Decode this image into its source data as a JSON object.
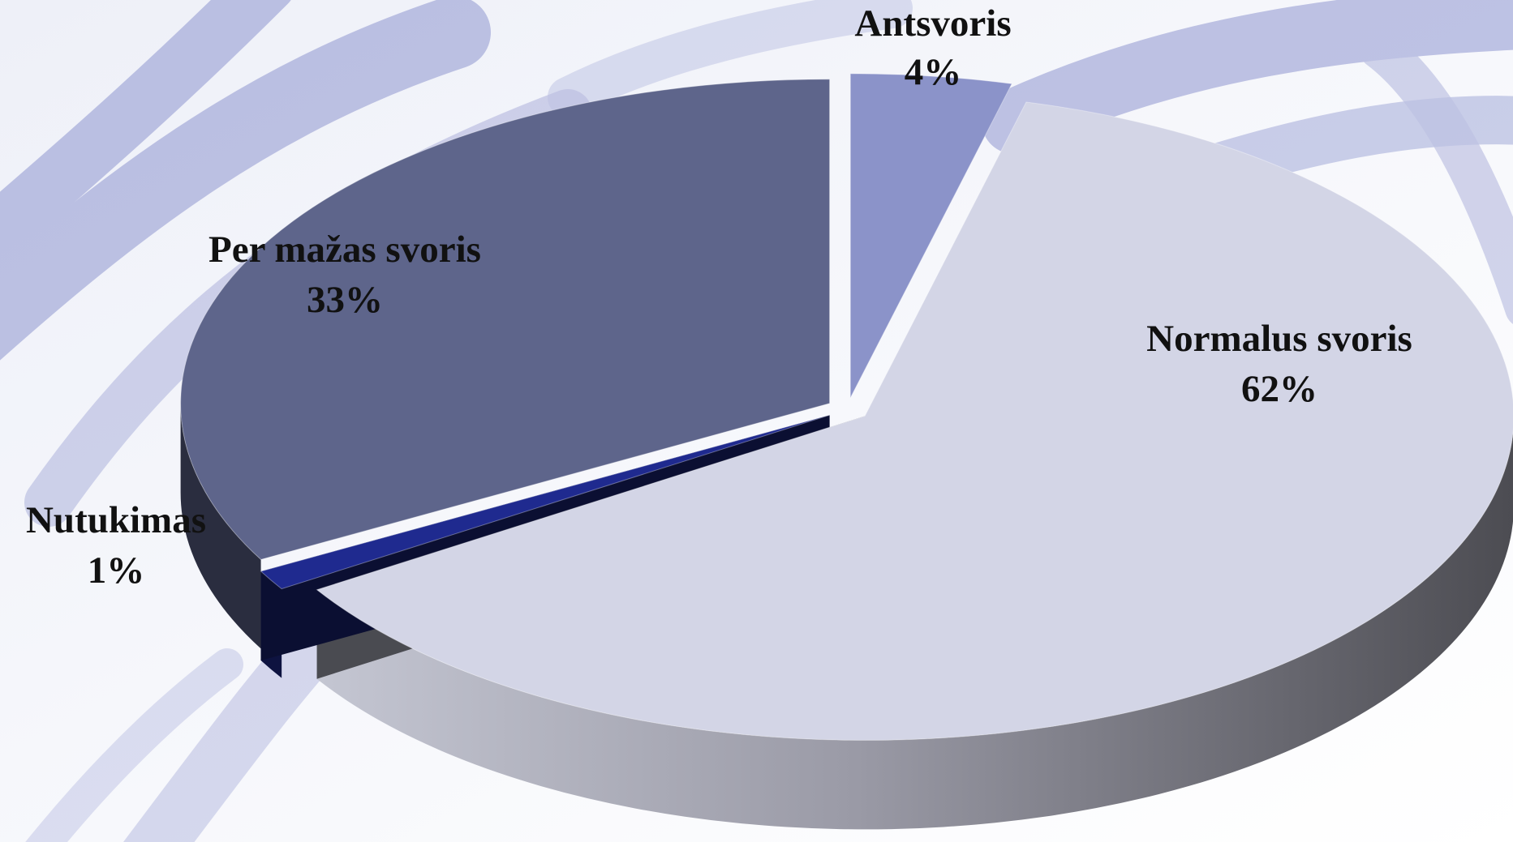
{
  "chart_data": {
    "type": "pie",
    "categories": [
      "Antsvoris",
      "Normalus svoris",
      "Nutukimas",
      "Per mažas svoris"
    ],
    "values": [
      4,
      62,
      1,
      33
    ],
    "value_labels": [
      "4%",
      "62%",
      "1%",
      "33%"
    ],
    "colors": [
      "#8b93c9",
      "#d3d5e6",
      "#1f2a8f",
      "#5e658b"
    ]
  }
}
